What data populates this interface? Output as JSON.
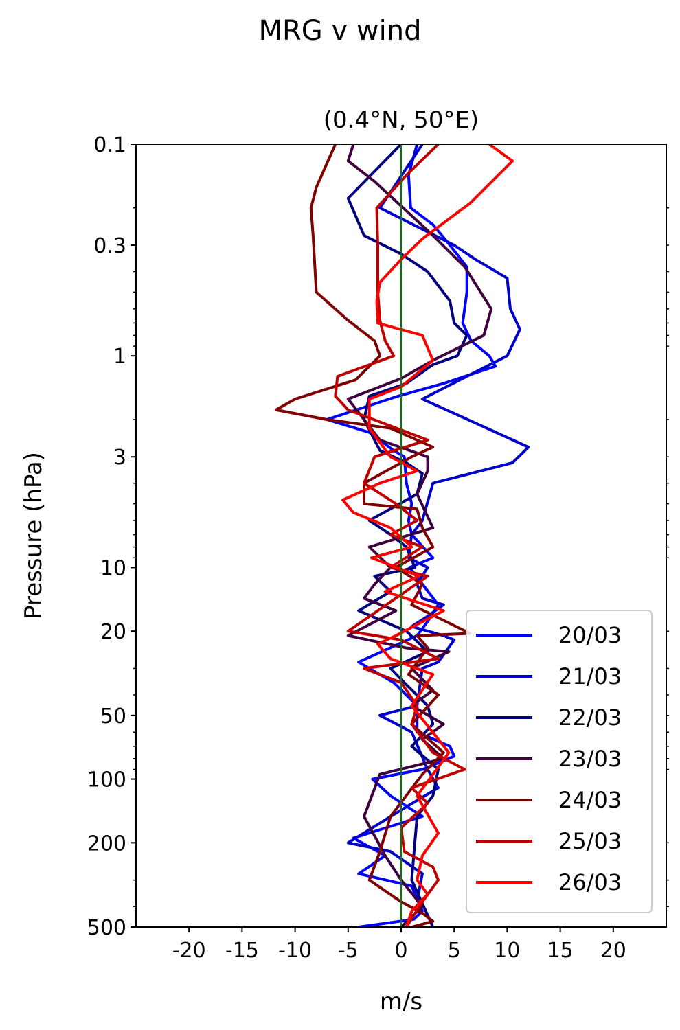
{
  "figure": {
    "suptitle": "MRG v wind"
  },
  "chart_data": {
    "type": "line",
    "title": "(0.4°N, 50°E)",
    "xlabel": "m/s",
    "ylabel": "Pressure (hPa)",
    "xlim": [
      -25,
      25
    ],
    "ylim": [
      500,
      0.1
    ],
    "yscale": "log",
    "xticks": [
      -20,
      -15,
      -10,
      -5,
      0,
      5,
      10,
      15,
      20
    ],
    "xtick_labels": [
      "-20",
      "-15",
      "-10",
      "-5",
      "0",
      "5",
      "10",
      "15",
      "20"
    ],
    "yticks": [
      0.1,
      0.3,
      1,
      3,
      10,
      20,
      50,
      100,
      200,
      500
    ],
    "ytick_labels": [
      "0.1",
      "0.3",
      "1",
      "3",
      "10",
      "20",
      "50",
      "100",
      "200",
      "500"
    ],
    "reference_line": {
      "x": 0,
      "color": "#008000"
    },
    "legend": "lower-right",
    "series": [
      {
        "name": "20/03",
        "color": "#0000ff",
        "x": [
          1.5,
          0.7,
          0.9,
          3,
          4.6,
          6.2,
          6.2,
          5.8,
          6.6,
          8.3,
          8.9,
          4,
          -0.3,
          -7,
          -3,
          -0.7,
          0.3,
          0.5,
          1,
          0.7,
          1,
          3,
          0.8,
          3.5,
          2.5,
          1.5,
          -4,
          -0.7,
          1.5,
          1.5,
          4.6,
          5,
          2,
          -2.7,
          -1,
          2,
          -4.5,
          -1.5,
          -4,
          1,
          1.5,
          2,
          1.2,
          -4
        ],
        "p": [
          0.1,
          0.14,
          0.2,
          0.24,
          0.3,
          0.38,
          0.5,
          0.7,
          0.85,
          1,
          1.12,
          1.35,
          1.55,
          2,
          2.3,
          2.8,
          3,
          4,
          5,
          6,
          7,
          9,
          10,
          15,
          18,
          21,
          28,
          35,
          45,
          60,
          70,
          78,
          90,
          100,
          120,
          150,
          190,
          230,
          280,
          320,
          370,
          420,
          460,
          500
        ]
      },
      {
        "name": "21/03",
        "color": "#0000cc",
        "x": [
          2,
          -2,
          5,
          7,
          10,
          10.3,
          11.2,
          10,
          2,
          12,
          10.5,
          3,
          2,
          1,
          0.7,
          2.5,
          1.5,
          2,
          4,
          2.5,
          1,
          4,
          5,
          3.5,
          2,
          1.5,
          -2,
          1,
          2.5,
          3.5,
          0,
          -5,
          -1,
          2,
          1.5
        ],
        "p": [
          0.1,
          0.2,
          0.3,
          0.35,
          0.43,
          0.6,
          0.75,
          1,
          1.6,
          2.7,
          3.2,
          4,
          6,
          7,
          9,
          10,
          12,
          14,
          15,
          17,
          19,
          21,
          22,
          28,
          30,
          45,
          50,
          60,
          90,
          110,
          140,
          200,
          220,
          280,
          380
        ]
      },
      {
        "name": "22/03",
        "color": "#00007f",
        "x": [
          0,
          -5,
          -3.5,
          0,
          2.5,
          4.6,
          5,
          6.2,
          5.3,
          3,
          0.5,
          -3,
          -3.5,
          -2,
          0.5,
          2,
          1.5,
          -3,
          -1,
          0.5,
          1.3,
          -2.5,
          -1,
          -4,
          0.5,
          2.5,
          -1,
          0.3,
          2.5,
          3,
          1,
          3.5,
          3,
          1.5,
          1,
          3
        ],
        "p": [
          0.1,
          0.18,
          0.27,
          0.33,
          0.4,
          0.55,
          0.7,
          0.8,
          1,
          1.1,
          1.35,
          1.55,
          2,
          2.8,
          3.2,
          3.6,
          4.5,
          6,
          7,
          8,
          10,
          11,
          13,
          16,
          20,
          25,
          30,
          35,
          45,
          55,
          70,
          90,
          120,
          150,
          300,
          500
        ]
      },
      {
        "name": "23/03",
        "color": "#3f003f",
        "x": [
          -4.5,
          -5,
          -2.5,
          3,
          6,
          8.5,
          7.8,
          3,
          0,
          -5,
          -2,
          2.5,
          2.5,
          1.5,
          3,
          -3,
          -1,
          -2.5,
          -3.5,
          -0.5,
          -5,
          0.5,
          4.5,
          1,
          3,
          1,
          4,
          2,
          4,
          -2,
          -3.5,
          -1.5,
          0,
          2,
          0
        ],
        "p": [
          0.1,
          0.12,
          0.15,
          0.27,
          0.38,
          0.6,
          0.8,
          1.05,
          1.28,
          1.6,
          2.5,
          3,
          3.5,
          4.5,
          6.5,
          8,
          10,
          12,
          14,
          16,
          21,
          24,
          25,
          30,
          38,
          45,
          55,
          65,
          80,
          95,
          150,
          230,
          300,
          400,
          500
        ]
      },
      {
        "name": "24/03",
        "color": "#7f0000",
        "x": [
          -6.2,
          -8,
          -8.5,
          -8.3,
          -8,
          -5,
          -2.5,
          -2,
          -4.3,
          -10,
          -11.8,
          -7,
          -1,
          3,
          1,
          -3.5,
          -3.5,
          1.5,
          2,
          3,
          -0.5,
          2,
          1,
          6.5,
          1.5,
          2.5,
          0.7,
          3.5,
          1,
          4,
          2,
          -1,
          -2,
          -3,
          0,
          2,
          3,
          1
        ],
        "p": [
          0.1,
          0.16,
          0.2,
          0.27,
          0.5,
          0.68,
          0.85,
          1,
          1.3,
          1.6,
          1.8,
          2,
          2.2,
          2.7,
          3,
          4,
          5,
          5.3,
          6.5,
          8,
          10,
          12,
          15,
          20.5,
          21,
          24,
          32,
          40,
          55,
          75,
          95,
          150,
          220,
          300,
          380,
          430,
          470,
          500
        ]
      },
      {
        "name": "25/03",
        "color": "#bf0000",
        "x": [
          3.5,
          0.5,
          -2.3,
          -2.2,
          -2.2,
          -2,
          -1.5,
          -0.7,
          -6,
          -6.2,
          -5,
          2.5,
          -2.5,
          -3.5,
          -0.5,
          1.5,
          -1,
          2,
          -1,
          2.5,
          -5,
          0,
          3.5,
          -3.5,
          0,
          1.5,
          1,
          3,
          6,
          1,
          2.5,
          0,
          0.3,
          3,
          3.5,
          2,
          0.5
        ],
        "p": [
          0.1,
          0.14,
          0.2,
          0.3,
          0.5,
          0.68,
          0.85,
          1,
          1.25,
          1.55,
          1.8,
          2.5,
          3,
          4,
          5,
          6,
          7,
          8,
          10,
          11,
          20,
          22,
          27,
          30,
          35,
          45,
          55,
          75,
          90,
          110,
          130,
          170,
          220,
          260,
          300,
          380,
          500
        ]
      },
      {
        "name": "26/03",
        "color": "#ff0000",
        "x": [
          8.3,
          10.5,
          6.5,
          2,
          0,
          -2,
          -2.3,
          -2.2,
          2,
          3,
          0,
          -3,
          -3,
          -1,
          1.5,
          -2,
          -5.5,
          -4.5,
          -1,
          1,
          -2.8,
          1.7,
          -1.5,
          4,
          -0.5,
          -2.2,
          -1,
          3,
          1,
          4.5,
          1.5,
          3.5,
          2,
          1.5,
          2.5,
          1,
          0.5
        ],
        "p": [
          0.1,
          0.12,
          0.19,
          0.28,
          0.35,
          0.45,
          0.55,
          0.7,
          0.8,
          1.05,
          1.4,
          1.6,
          2.2,
          3,
          3.5,
          4,
          4.8,
          5.5,
          6.5,
          8,
          9,
          11,
          13,
          16,
          21,
          23,
          27,
          32,
          45,
          75,
          120,
          180,
          230,
          300,
          350,
          420,
          500
        ]
      }
    ]
  }
}
